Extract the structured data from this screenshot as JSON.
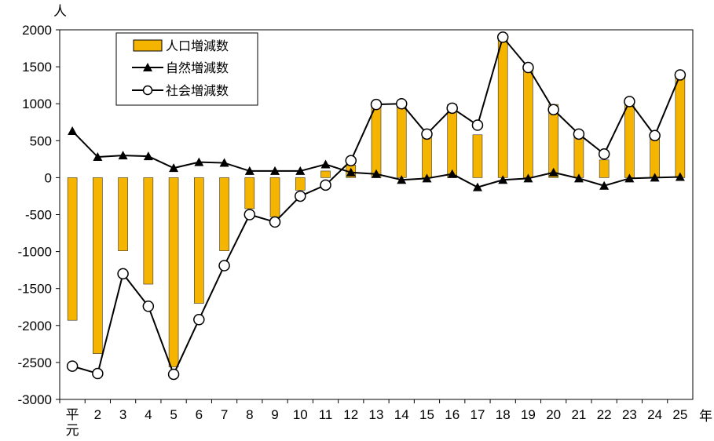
{
  "chart_data": {
    "type": "bar",
    "y_unit": "人",
    "x_unit": "年",
    "categories": [
      "平元",
      "2",
      "3",
      "4",
      "5",
      "6",
      "7",
      "8",
      "9",
      "10",
      "11",
      "12",
      "13",
      "14",
      "15",
      "16",
      "17",
      "18",
      "19",
      "20",
      "21",
      "22",
      "23",
      "24",
      "25"
    ],
    "ylim": [
      -3000,
      2000
    ],
    "yticks": [
      2000,
      1500,
      1000,
      500,
      0,
      -500,
      -1000,
      -1500,
      -2000,
      -2500,
      -3000
    ],
    "grid": false,
    "legend_position": "top-left",
    "series": [
      {
        "name": "人口増減数",
        "kind": "bar",
        "color": "#F5B400",
        "values": [
          -1930,
          -2380,
          -990,
          -1440,
          -2560,
          -1700,
          -990,
          -420,
          -530,
          -170,
          90,
          170,
          1010,
          1000,
          580,
          990,
          580,
          1900,
          1490,
          990,
          590,
          240,
          1010,
          570,
          1390
        ]
      },
      {
        "name": "自然増減数",
        "kind": "line",
        "marker": "triangle",
        "values": [
          630,
          280,
          300,
          290,
          130,
          210,
          200,
          90,
          90,
          90,
          180,
          70,
          50,
          -30,
          -10,
          50,
          -130,
          -30,
          -10,
          70,
          -10,
          -110,
          -10,
          0,
          10
        ]
      },
      {
        "name": "社会増減数",
        "kind": "line",
        "marker": "circle",
        "values": [
          -2550,
          -2650,
          -1300,
          -1740,
          -2660,
          -1920,
          -1190,
          -500,
          -600,
          -250,
          -100,
          230,
          990,
          1000,
          590,
          940,
          710,
          1900,
          1490,
          920,
          590,
          320,
          1030,
          570,
          1390
        ]
      }
    ]
  }
}
